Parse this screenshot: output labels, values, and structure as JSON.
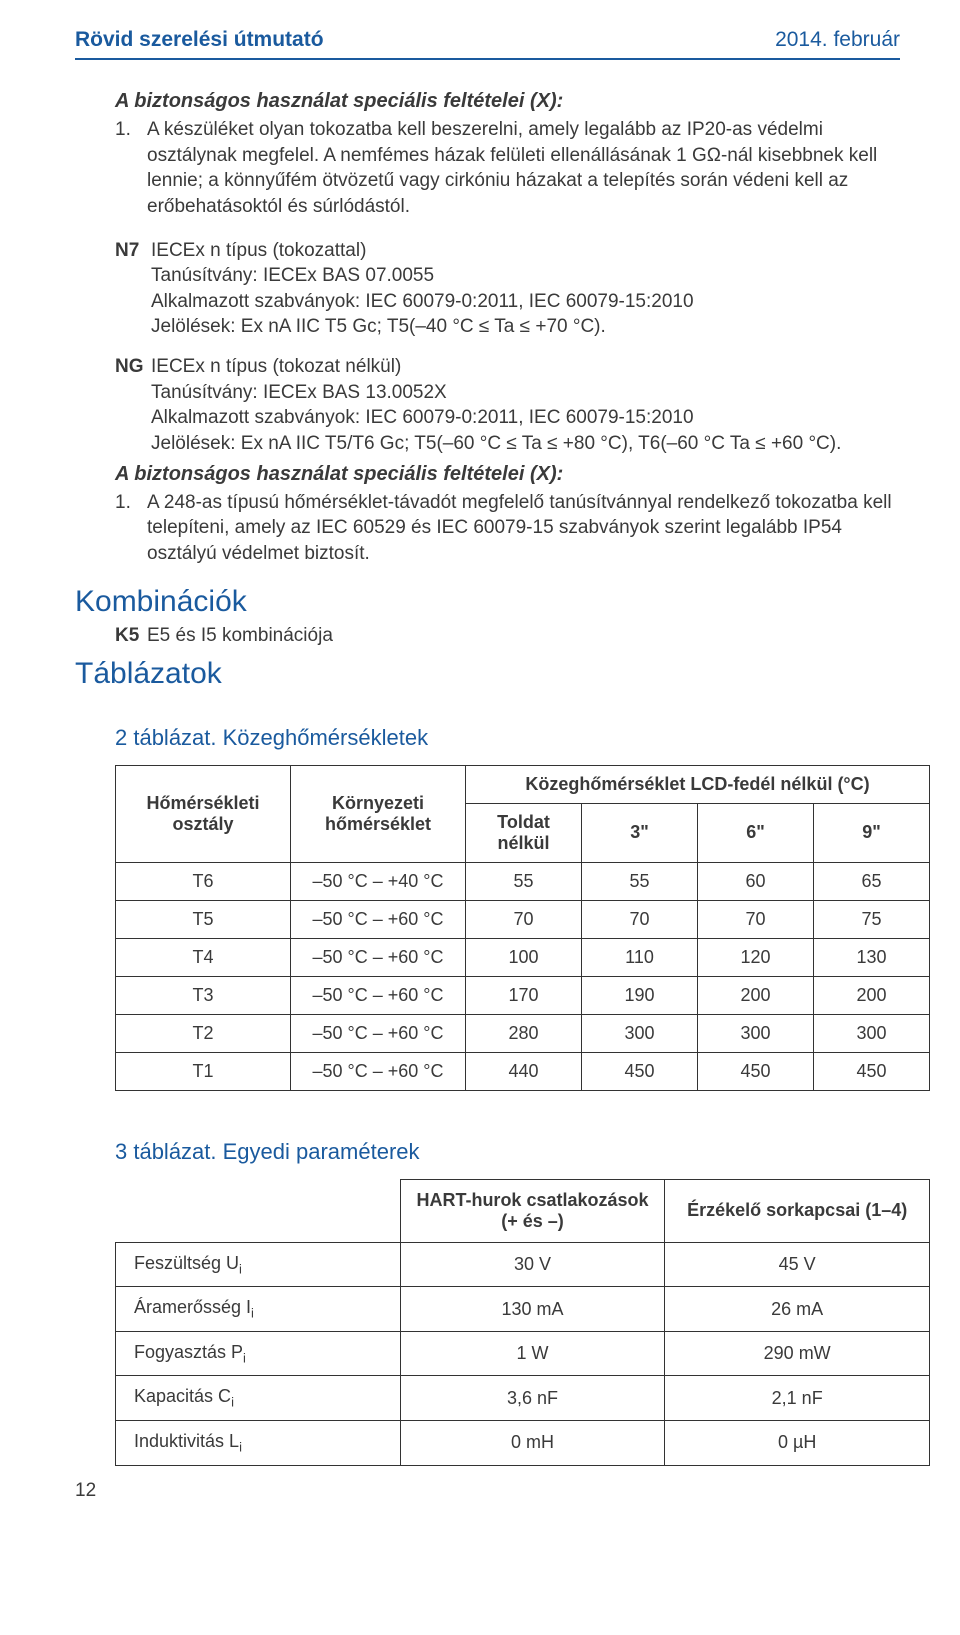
{
  "header": {
    "left": "Rövid szerelési útmutató",
    "right": "2014. február"
  },
  "section1": {
    "title": "A biztonságos használat speciális feltételei (X):",
    "item_num": "1.",
    "item_text": "A készüléket olyan tokozatba kell beszerelni, amely legalább az IP20-as védelmi osztálynak megfelel. A nemfémes házak felületi ellenállásának 1 GΩ-nál kisebbnek kell lennie; a könnyűfém ötvözetű vagy cirkóniu házakat a telepítés során védeni kell az erőbehatásoktól és súrlódástól."
  },
  "n7": {
    "tag": "N7",
    "title": "IECEx n típus (tokozattal)",
    "l1": "Tanúsítvány: IECEx BAS 07.0055",
    "l2": "Alkalmazott szabványok: IEC 60079-0:2011, IEC 60079-15:2010",
    "l3": "Jelölések: Ex nA IIC T5 Gc; T5(–40 °C ≤ Ta ≤ +70 °C)."
  },
  "ng": {
    "tag": "NG",
    "title": "IECEx n típus (tokozat nélkül)",
    "l1": "Tanúsítvány: IECEx BAS 13.0052X",
    "l2": "Alkalmazott szabványok: IEC 60079-0:2011, IEC 60079-15:2010",
    "l3": "Jelölések: Ex nA IIC T5/T6 Gc; T5(–60 °C ≤ Ta ≤ +80 °C), T6(–60 °C Ta ≤ +60 °C)."
  },
  "section2": {
    "title": "A biztonságos használat speciális feltételei (X):",
    "item_num": "1.",
    "item_text": "A 248-as típusú hőmérséklet-távadót megfelelő tanúsítvánnyal rendelkező tokozatba kell telepíteni, amely az IEC 60529 és IEC 60079-15 szabványok szerint legalább IP54 osztályú védelmet biztosít."
  },
  "kombinaciok": {
    "heading": "Kombinációk",
    "tag": "K5",
    "text": "E5 és I5 kombinációja"
  },
  "tablazatok": {
    "heading": "Táblázatok"
  },
  "table2": {
    "title": "2 táblázat.  Közeghőmérsékletek",
    "h_col1": "Hőmérsékleti osztály",
    "h_col2": "Környezeti hőmérséklet",
    "h_span": "Közeghőmérséklet LCD-fedél nélkül (°C)",
    "h_sub1": "Toldat nélkül",
    "h_sub2": "3\"",
    "h_sub3": "6\"",
    "h_sub4": "9\"",
    "rows": [
      [
        "T6",
        "–50 °C – +40 °C",
        "55",
        "55",
        "60",
        "65"
      ],
      [
        "T5",
        "–50 °C – +60 °C",
        "70",
        "70",
        "70",
        "75"
      ],
      [
        "T4",
        "–50 °C – +60 °C",
        "100",
        "110",
        "120",
        "130"
      ],
      [
        "T3",
        "–50 °C – +60 °C",
        "170",
        "190",
        "200",
        "200"
      ],
      [
        "T2",
        "–50 °C – +60 °C",
        "280",
        "300",
        "300",
        "300"
      ],
      [
        "T1",
        "–50 °C – +60 °C",
        "440",
        "450",
        "450",
        "450"
      ]
    ]
  },
  "table3": {
    "title": "3 táblázat.  Egyedi paraméterek",
    "h_col2": "HART-hurok csatlakozások (+ és –)",
    "h_col3": "Érzékelő sorkapcsai (1–4)",
    "rows": [
      {
        "label": "Feszültség U",
        "sub": "i",
        "c2": "30 V",
        "c3": "45 V"
      },
      {
        "label": "Áramerősség I",
        "sub": "i",
        "c2": "130 mA",
        "c3": "26 mA"
      },
      {
        "label": "Fogyasztás P",
        "sub": "i",
        "c2": "1 W",
        "c3": "290 mW"
      },
      {
        "label": "Kapacitás C",
        "sub": "i",
        "c2": "3,6 nF",
        "c3": "2,1 nF"
      },
      {
        "label": "Induktivitás L",
        "sub": "i",
        "c2": "0 mH",
        "c3": "0 µH"
      }
    ]
  },
  "pagenum": "12"
}
